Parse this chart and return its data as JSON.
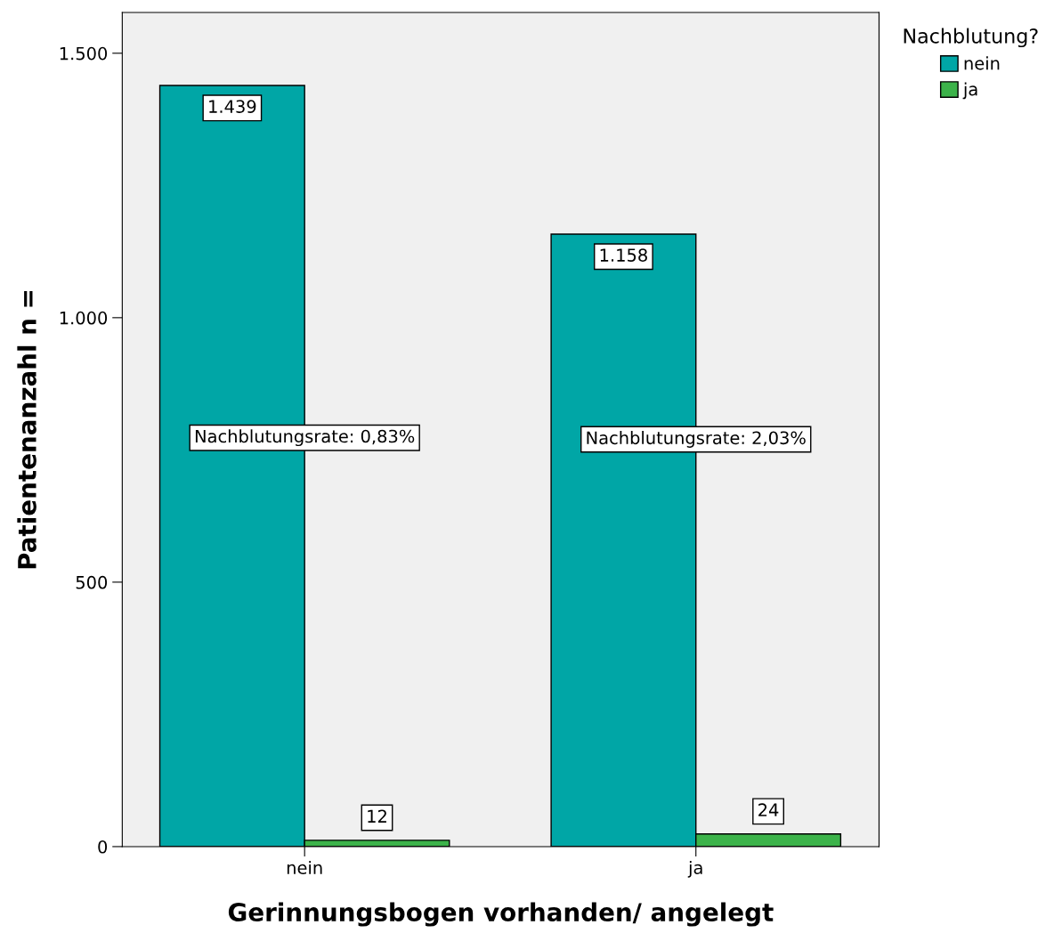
{
  "chart_data": {
    "type": "bar",
    "xlabel": "Gerinnungsbogen vorhanden/ angelegt",
    "ylabel": "Patientenanzahl n =",
    "legend_title": "Nachblutung?",
    "categories": [
      "nein",
      "ja"
    ],
    "series": [
      {
        "name": "nein",
        "color": "#00a6a6",
        "values": [
          1439,
          1158
        ],
        "value_labels": [
          "1.439",
          "1.158"
        ]
      },
      {
        "name": "ja",
        "color": "#3cb34a",
        "values": [
          12,
          24
        ],
        "value_labels": [
          "12",
          "24"
        ]
      }
    ],
    "ylim": [
      0,
      1577
    ],
    "yticks": [
      {
        "value": 0,
        "label": "0"
      },
      {
        "value": 500,
        "label": "500"
      },
      {
        "value": 1000,
        "label": "1.000"
      },
      {
        "value": 1500,
        "label": "1.500"
      }
    ],
    "annotations": [
      {
        "text": "Nachblutungsrate: 0,83%",
        "x": "nein",
        "y": 773
      },
      {
        "text": "Nachblutungsrate: 2,03%",
        "x": "ja",
        "y": 770
      }
    ],
    "grid": false,
    "legend": "top right"
  }
}
